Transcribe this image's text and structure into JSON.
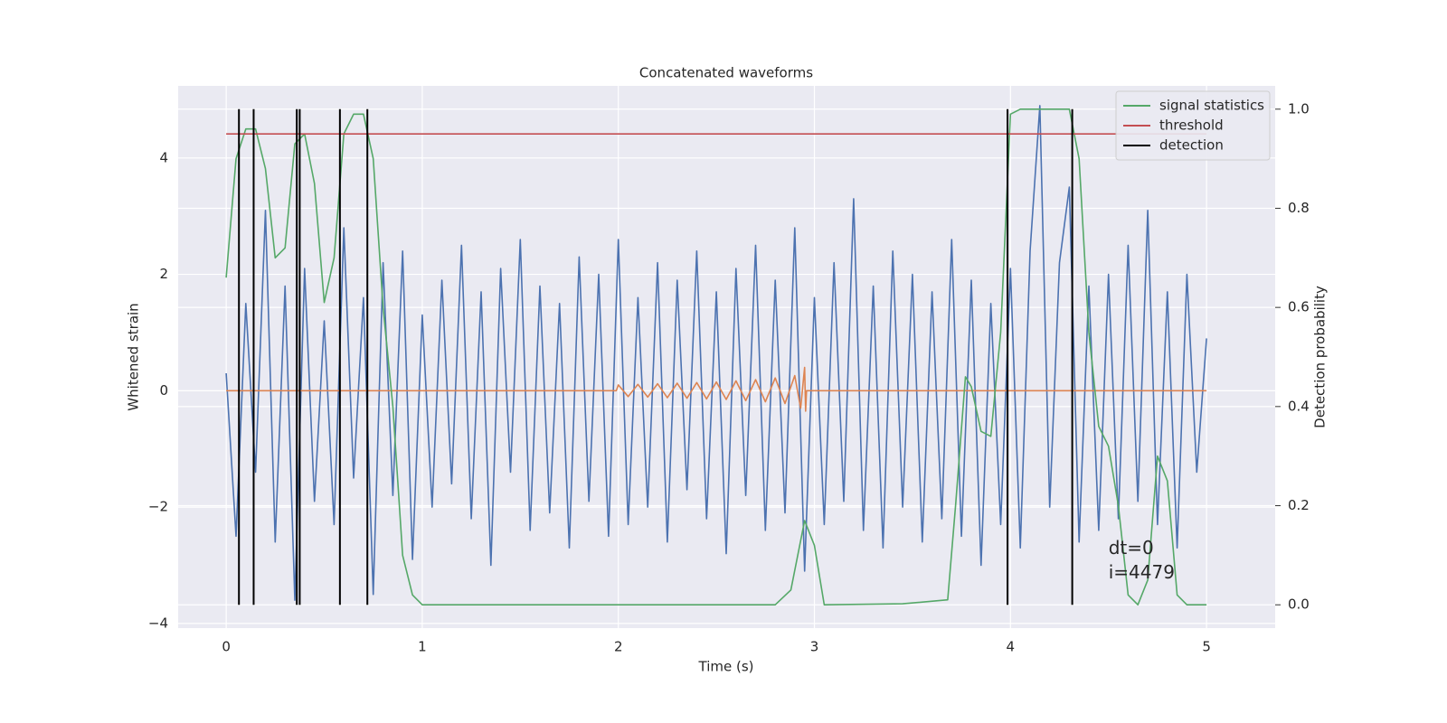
{
  "chart_data": {
    "type": "line",
    "title": "Concatenated waveforms",
    "xlabel": "Time (s)",
    "ylabel": "Whitened strain",
    "y2label": "Detection probability",
    "xlim": [
      -0.245,
      5.35
    ],
    "xticks": [
      0,
      1,
      2,
      3,
      4,
      5
    ],
    "ylim": [
      -4.08,
      5.24
    ],
    "yticks": [
      {
        "value": -4,
        "label": "−4"
      },
      {
        "value": -2,
        "label": "−2"
      },
      0,
      2,
      4
    ],
    "y2lim": [
      -0.047,
      1.047
    ],
    "y2ticks": [
      {
        "value": 0,
        "label": "0.0"
      },
      {
        "value": 0.2,
        "label": "0.2"
      },
      {
        "value": 0.4,
        "label": "0.4"
      },
      {
        "value": 0.6,
        "label": "0.6"
      },
      {
        "value": 0.8,
        "label": "0.8"
      },
      {
        "value": 1,
        "label": "1.0"
      }
    ],
    "grid": true,
    "legend": "upper right",
    "annotations": [
      {
        "text": "dt=0",
        "x": 4.5,
        "y": -2.72
      },
      {
        "text": "i=4479",
        "x": 4.5,
        "y": -3.14
      }
    ],
    "series": [
      {
        "color": "#4c72b0",
        "x": [
          0,
          0.05,
          0.1,
          0.15,
          0.2,
          0.25,
          0.3,
          0.35,
          0.4,
          0.45,
          0.5,
          0.55,
          0.6,
          0.65,
          0.7,
          0.75,
          0.8,
          0.85,
          0.9,
          0.95,
          1,
          1.05,
          1.1,
          1.15,
          1.2,
          1.25,
          1.3,
          1.35,
          1.4,
          1.45,
          1.5,
          1.55,
          1.6,
          1.65,
          1.7,
          1.75,
          1.8,
          1.85,
          1.9,
          1.95,
          2,
          2.05,
          2.1,
          2.15,
          2.2,
          2.25,
          2.3,
          2.35,
          2.4,
          2.45,
          2.5,
          2.55,
          2.6,
          2.65,
          2.7,
          2.75,
          2.8,
          2.85,
          2.9,
          2.95,
          3,
          3.05,
          3.1,
          3.15,
          3.2,
          3.25,
          3.3,
          3.35,
          3.4,
          3.45,
          3.5,
          3.55,
          3.6,
          3.65,
          3.7,
          3.75,
          3.8,
          3.85,
          3.9,
          3.95,
          4,
          4.05,
          4.1,
          4.15,
          4.2,
          4.25,
          4.3,
          4.35,
          4.4,
          4.45,
          4.5,
          4.55,
          4.6,
          4.65,
          4.7,
          4.75,
          4.8,
          4.85,
          4.9,
          4.95,
          5
        ],
        "values": [
          0.3,
          -2.5,
          1.5,
          -1.4,
          3.1,
          -2.6,
          1.8,
          -3.6,
          2.1,
          -1.9,
          1.2,
          -2.3,
          2.8,
          -1.5,
          1.6,
          -3.5,
          2.2,
          -1.8,
          2.4,
          -2.9,
          1.3,
          -2.0,
          1.9,
          -1.6,
          2.5,
          -2.2,
          1.7,
          -3.0,
          2.1,
          -1.4,
          2.6,
          -2.4,
          1.8,
          -2.1,
          1.5,
          -2.7,
          2.3,
          -1.9,
          2.0,
          -2.5,
          2.6,
          -2.3,
          1.6,
          -2.0,
          2.2,
          -2.6,
          1.9,
          -1.7,
          2.4,
          -2.2,
          1.7,
          -2.8,
          2.1,
          -1.8,
          2.5,
          -2.4,
          1.9,
          -2.1,
          2.8,
          -3.1,
          1.6,
          -2.3,
          2.2,
          -1.9,
          3.3,
          -2.4,
          1.8,
          -2.7,
          2.4,
          -2.0,
          2.0,
          -2.6,
          1.7,
          -2.2,
          2.6,
          -2.5,
          1.9,
          -3.0,
          1.5,
          -2.3,
          2.1,
          -2.7,
          2.4,
          4.9,
          -2.0,
          2.2,
          3.5,
          -2.6,
          1.8,
          -2.4,
          2.0,
          -2.2,
          2.5,
          -1.9,
          3.1,
          -2.3,
          1.7,
          -2.7,
          2.0,
          -1.4,
          0.9
        ]
      },
      {
        "color": "#dd8452",
        "x": [
          0,
          1.99,
          2.0,
          2.05,
          2.1,
          2.15,
          2.2,
          2.25,
          2.3,
          2.35,
          2.4,
          2.45,
          2.5,
          2.55,
          2.6,
          2.65,
          2.7,
          2.75,
          2.8,
          2.85,
          2.9,
          2.93,
          2.95,
          2.955,
          2.96,
          5
        ],
        "values": [
          0,
          0,
          0.1,
          -0.1,
          0.11,
          -0.11,
          0.12,
          -0.12,
          0.13,
          -0.13,
          0.14,
          -0.14,
          0.15,
          -0.15,
          0.17,
          -0.17,
          0.19,
          -0.19,
          0.22,
          -0.22,
          0.26,
          -0.3,
          0.4,
          -0.35,
          0,
          0
        ]
      },
      {
        "name": "signal statistics",
        "color": "#55a868",
        "axis": "y2",
        "x": [
          0,
          0.05,
          0.1,
          0.15,
          0.2,
          0.25,
          0.3,
          0.35,
          0.4,
          0.45,
          0.5,
          0.55,
          0.6,
          0.65,
          0.7,
          0.75,
          0.8,
          0.85,
          0.9,
          0.95,
          1.0,
          2.8,
          2.88,
          2.95,
          3.0,
          3.05,
          3.45,
          3.68,
          3.72,
          3.77,
          3.8,
          3.85,
          3.9,
          3.95,
          4.0,
          4.05,
          4.3,
          4.35,
          4.4,
          4.45,
          4.5,
          4.55,
          4.6,
          4.65,
          4.7,
          4.75,
          4.8,
          4.85,
          4.9,
          5.0
        ],
        "values": [
          0.66,
          0.9,
          0.96,
          0.96,
          0.88,
          0.7,
          0.72,
          0.93,
          0.95,
          0.85,
          0.61,
          0.7,
          0.95,
          0.99,
          0.99,
          0.9,
          0.6,
          0.4,
          0.1,
          0.02,
          0,
          0,
          0.03,
          0.17,
          0.12,
          0,
          0.002,
          0.01,
          0.2,
          0.46,
          0.44,
          0.35,
          0.34,
          0.55,
          0.99,
          1.0,
          1.0,
          0.9,
          0.55,
          0.36,
          0.32,
          0.2,
          0.02,
          0,
          0.05,
          0.3,
          0.25,
          0.02,
          0,
          0
        ]
      },
      {
        "name": "threshold",
        "color": "#c44e52",
        "axis": "y2",
        "x": [
          0,
          5
        ],
        "values": [
          0.95,
          0.95
        ]
      },
      {
        "name": "detection",
        "color": "#000000",
        "axis": "y2",
        "type": "vlines",
        "x": [
          0.065,
          0.14,
          0.36,
          0.375,
          0.58,
          0.72,
          3.985,
          4.315
        ],
        "ymin": 0,
        "ymax": 1
      }
    ]
  }
}
